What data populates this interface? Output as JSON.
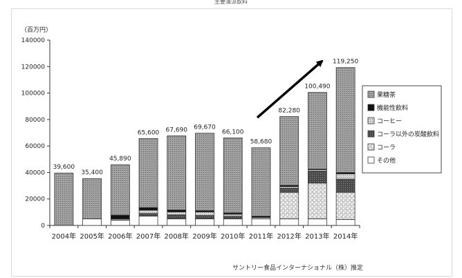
{
  "header_text": "主要清涼飲料",
  "source_note": "サントリー食品インターナショナル（株）推定",
  "chart_data": {
    "type": "bar",
    "stacked": true,
    "unit_label": "（百万円）",
    "categories": [
      "2004年",
      "2005年",
      "2006年",
      "2007年",
      "2008年",
      "2009年",
      "2010年",
      "2011年",
      "2012年",
      "2013年",
      "2014年"
    ],
    "totals": [
      39600,
      35400,
      45890,
      65600,
      67690,
      69670,
      66100,
      58680,
      82280,
      100490,
      119250
    ],
    "total_labels": [
      "39,600",
      "35,400",
      "45,890",
      "65,600",
      "67,690",
      "69,670",
      "66,100",
      "58,680",
      "82,280",
      "100,490",
      "119,250"
    ],
    "ylim": [
      0,
      140000
    ],
    "yticks": [
      0,
      20000,
      40000,
      60000,
      80000,
      100000,
      120000,
      140000
    ],
    "grid": false,
    "legend_position": "right",
    "trend_arrow": true,
    "series": [
      {
        "name": "その他",
        "pattern": "white",
        "values": [
          0,
          5000,
          4000,
          7000,
          5000,
          5000,
          5000,
          5000,
          5000,
          5000,
          4500
        ]
      },
      {
        "name": "コーラ",
        "pattern": "checker",
        "values": [
          0,
          0,
          0,
          0,
          0,
          0,
          0,
          0,
          20000,
          27000,
          20500
        ]
      },
      {
        "name": "コーラ以外の炭酸飲料",
        "pattern": "darkdots",
        "values": [
          0,
          0,
          0,
          2000,
          3000,
          2500,
          2000,
          0,
          3000,
          9000,
          10000
        ]
      },
      {
        "name": "コーヒー",
        "pattern": "lightdots",
        "values": [
          0,
          0,
          800,
          2500,
          2200,
          2700,
          1500,
          1000,
          1300,
          1000,
          4000
        ]
      },
      {
        "name": "機能性飲料",
        "pattern": "black",
        "values": [
          0,
          0,
          3000,
          2000,
          1500,
          1000,
          1000,
          1000,
          1000,
          500,
          1000
        ]
      },
      {
        "name": "果糖茶",
        "pattern": "gray",
        "values": [
          39600,
          30400,
          38090,
          52100,
          55990,
          58470,
          56600,
          51680,
          51980,
          57990,
          79250
        ]
      }
    ],
    "legend_order": [
      "果糖茶",
      "機能性飲料",
      "コーヒー",
      "コーラ以外の炭酸飲料",
      "コーラ",
      "その他"
    ]
  }
}
